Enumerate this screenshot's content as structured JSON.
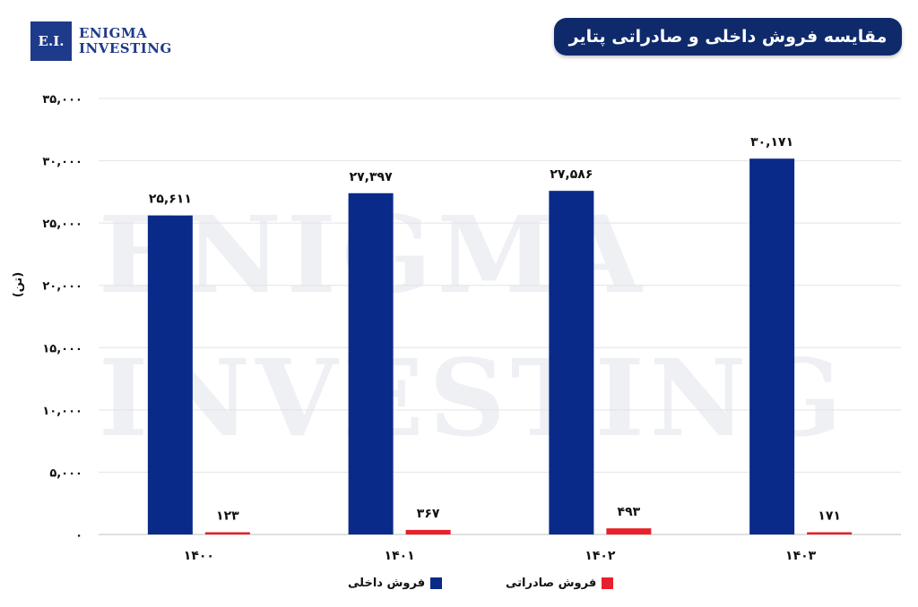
{
  "brand": {
    "mark": "E.I.",
    "line1": "Enigma",
    "line2": "Investing",
    "color": "#1e3a8a"
  },
  "watermark": {
    "line1": "ENIGMA",
    "line2": "INVESTING"
  },
  "chart_data": {
    "type": "bar",
    "title": "مقایسه فروش داخلی و صادراتی پتایر",
    "ylabel": "(تن)",
    "xlabel": "",
    "ylim": [
      0,
      35000
    ],
    "yticks": [
      0,
      5000,
      10000,
      15000,
      20000,
      25000,
      30000,
      35000
    ],
    "ytick_labels": [
      "۰",
      "۵,۰۰۰",
      "۱۰,۰۰۰",
      "۱۵,۰۰۰",
      "۲۰,۰۰۰",
      "۲۵,۰۰۰",
      "۳۰,۰۰۰",
      "۳۵,۰۰۰"
    ],
    "categories": [
      "۱۴۰۰",
      "۱۴۰۱",
      "۱۴۰۲",
      "۱۴۰۳"
    ],
    "grid": true,
    "legend_position": "bottom-center",
    "series": [
      {
        "name": "فروش داخلی",
        "color": "#0a2a8a",
        "values": [
          25611,
          27397,
          27586,
          30171
        ],
        "labels": [
          "۲۵,۶۱۱",
          "۲۷,۳۹۷",
          "۲۷,۵۸۶",
          "۳۰,۱۷۱"
        ]
      },
      {
        "name": "فروش صادراتی",
        "color": "#e8202a",
        "values": [
          123,
          367,
          493,
          171
        ],
        "labels": [
          "۱۲۳",
          "۳۶۷",
          "۴۹۳",
          "۱۷۱"
        ]
      }
    ]
  }
}
